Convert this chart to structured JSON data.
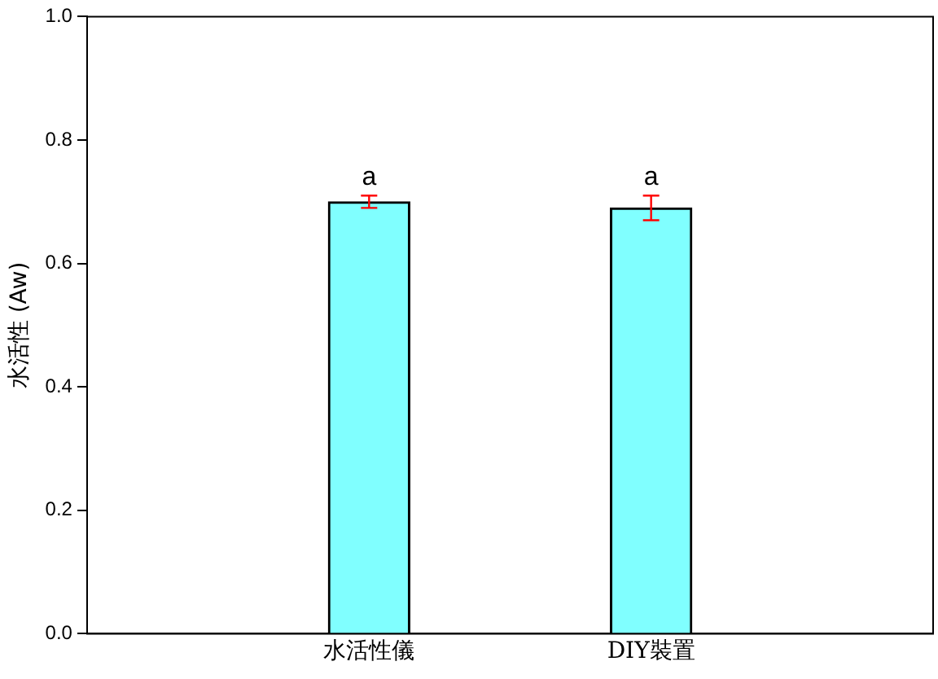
{
  "chart_data": {
    "type": "bar",
    "ylabel": "水活性 (Aw)",
    "categories": [
      "水活性儀",
      "DIY裝置"
    ],
    "values": [
      0.7,
      0.69
    ],
    "errors": [
      0.01,
      0.02
    ],
    "color": "#80ffff",
    "ylim": [
      0,
      1
    ],
    "yticks": [
      {
        "value": 0,
        "label": "0.0"
      },
      {
        "value": 0.2,
        "label": "0.2"
      },
      {
        "value": 0.4,
        "label": "0.4"
      },
      {
        "value": 0.6,
        "label": "0.6"
      },
      {
        "value": 0.8,
        "label": "0.8"
      },
      {
        "value": 1,
        "label": "1.0"
      }
    ],
    "annotations": [
      "a",
      "a"
    ],
    "grid": false,
    "legend": false
  }
}
